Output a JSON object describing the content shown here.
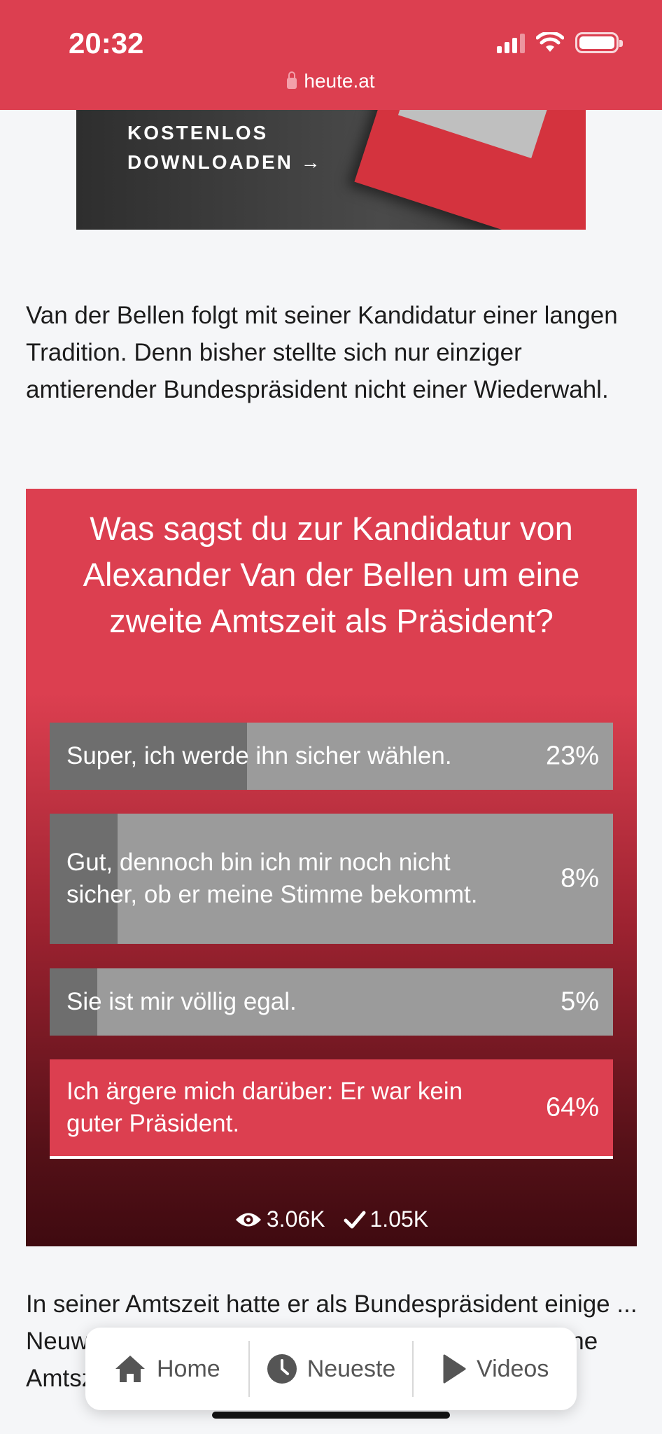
{
  "status_bar": {
    "time": "20:32",
    "url": "heute.at"
  },
  "ad": {
    "line1": "KOSTENLOS",
    "line2": "DOWNLOADEN →"
  },
  "article": {
    "para1": "Van der Bellen folgt mit seiner Kandidatur einer langen Tradition. Denn bisher stellte sich nur einziger amtierender Bundespräsident nicht einer Wiederwahl.",
    "para2": "In seiner Amtszeit hatte er als Bundespräsident einige ... Neuw... ...färe und zahlreiche Angelobungen in seine Amtszeit."
  },
  "poll": {
    "question": "Was sagst du zur Kandidatur von Alexander Van der Bellen um eine zweite Amtszeit als Präsident?",
    "options": [
      {
        "label": "Super, ich werde ihn sicher wählen.",
        "percent": "23%",
        "fill_fraction": 0.35
      },
      {
        "label": "Gut, dennoch bin ich mir noch nicht sicher, ob er meine Stimme bekommt.",
        "percent": "8%",
        "fill_fraction": 0.12
      },
      {
        "label": "Sie ist mir völlig egal.",
        "percent": "5%",
        "fill_fraction": 0.085
      },
      {
        "label": "Ich ärgere mich darüber: Er war kein guter Präsident.",
        "percent": "64%",
        "fill_fraction": 1.0,
        "selected": true
      }
    ],
    "views": "3.06K",
    "votes": "1.05K"
  },
  "nav": {
    "home": "Home",
    "latest": "Neueste",
    "videos": "Videos"
  },
  "colors": {
    "brand_red": "#dc3f50",
    "bar_gray": "#9b9b9b",
    "bar_fill": "#6e6e6e"
  }
}
